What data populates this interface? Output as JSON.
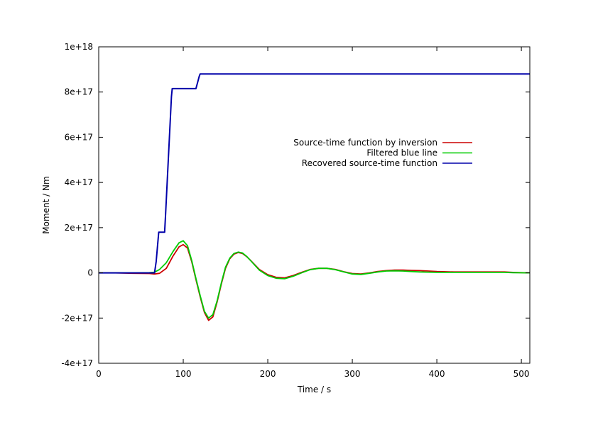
{
  "chart_data": {
    "type": "line",
    "title": "",
    "xlabel": "Time / s",
    "ylabel": "Moment / Nm",
    "xlim": [
      0,
      510
    ],
    "ylim": [
      -4e+17,
      1e+18
    ],
    "x_ticks": [
      0,
      100,
      200,
      300,
      400,
      500
    ],
    "x_tick_labels": [
      "0",
      "100",
      "200",
      "300",
      "400",
      "500"
    ],
    "y_ticks": [
      -4e+17,
      -2e+17,
      0,
      2e+17,
      4e+17,
      6e+17,
      8e+17,
      1e+18
    ],
    "y_tick_labels": [
      "-4e+17",
      "-2e+17",
      "0",
      "2e+17",
      "4e+17",
      "6e+17",
      "8e+17",
      "1e+18"
    ],
    "grid": false,
    "legend_position": "right",
    "series": [
      {
        "name": "Source-time function by inversion",
        "color": "#cc0000",
        "x": [
          0,
          20,
          40,
          60,
          66,
          72,
          80,
          88,
          95,
          100,
          105,
          110,
          115,
          120,
          125,
          130,
          135,
          140,
          145,
          150,
          155,
          160,
          165,
          170,
          175,
          180,
          190,
          200,
          210,
          220,
          230,
          240,
          250,
          260,
          270,
          280,
          290,
          300,
          310,
          320,
          330,
          340,
          350,
          360,
          370,
          380,
          390,
          400,
          420,
          440,
          460,
          480,
          490,
          510
        ],
        "y": [
          0,
          0,
          -2000000000000000.0,
          -3000000000000000.0,
          -5000000000000000.0,
          -2000000000000000.0,
          2e+16,
          7.5e+16,
          1.15e+17,
          1.25e+17,
          1.1e+17,
          5e+16,
          -3e+16,
          -1.05e+17,
          -1.75e+17,
          -2.1e+17,
          -1.95e+17,
          -1.3e+17,
          -5e+16,
          2e+16,
          6.2e+16,
          8.3e+16,
          9e+16,
          8.6e+16,
          7.2e+16,
          5.4e+16,
          1.5e+16,
          -8000000000000000.0,
          -2e+16,
          -2.2e+16,
          -1.2e+16,
          2000000000000000.0,
          1.5e+16,
          2e+16,
          2e+16,
          1.5e+16,
          5000000000000000.0,
          -3000000000000000.0,
          -5000000000000000.0,
          0,
          6000000000000000.0,
          1e+16,
          1.2e+16,
          1.2e+16,
          1.1e+16,
          1e+16,
          8000000000000000.0,
          6000000000000000.0,
          4000000000000000.0,
          4000000000000000.0,
          4000000000000000.0,
          4000000000000000.0,
          2000000000000000.0,
          0
        ]
      },
      {
        "name": "Filtered blue line",
        "color": "#00cc00",
        "x": [
          0,
          20,
          40,
          60,
          66,
          72,
          80,
          88,
          95,
          100,
          105,
          110,
          115,
          120,
          125,
          130,
          135,
          140,
          145,
          150,
          155,
          160,
          165,
          170,
          175,
          180,
          190,
          200,
          210,
          220,
          230,
          240,
          250,
          260,
          270,
          280,
          290,
          300,
          310,
          320,
          330,
          340,
          350,
          360,
          370,
          380,
          390,
          400,
          420,
          440,
          460,
          480,
          490,
          510
        ],
        "y": [
          0,
          0,
          0,
          1000000000000000.0,
          3000000000000000.0,
          1.5e+16,
          4.5e+16,
          9.5e+16,
          1.33e+17,
          1.42e+17,
          1.2e+17,
          5.5e+16,
          -2.5e+16,
          -1e+17,
          -1.7e+17,
          -2e+17,
          -1.85e+17,
          -1.25e+17,
          -4.5e+16,
          2.5e+16,
          6.5e+16,
          8.6e+16,
          9.2e+16,
          8.8e+16,
          7.3e+16,
          5.3e+16,
          1.2e+16,
          -1.2e+16,
          -2.4e+16,
          -2.6e+16,
          -1.5e+16,
          0,
          1.4e+16,
          2e+16,
          2e+16,
          1.4e+16,
          4000000000000000.0,
          -5000000000000000.0,
          -7000000000000000.0,
          -2000000000000000.0,
          4000000000000000.0,
          8000000000000000.0,
          9000000000000000.0,
          8000000000000000.0,
          6000000000000000.0,
          4000000000000000.0,
          3000000000000000.0,
          2000000000000000.0,
          2000000000000000.0,
          2000000000000000.0,
          2000000000000000.0,
          2000000000000000.0,
          1000000000000000.0,
          0
        ]
      },
      {
        "name": "Recovered source-time function",
        "color": "#0000aa",
        "x": [
          0,
          66,
          68,
          71,
          72,
          78,
          79,
          86,
          87,
          115,
          119,
          120,
          510
        ],
        "y": [
          0,
          0,
          5e+16,
          1.8e+17,
          1.8e+17,
          1.8e+17,
          2.5e+17,
          7.8e+17,
          8.15e+17,
          8.15e+17,
          8.7e+17,
          8.8e+17,
          8.8e+17
        ]
      }
    ]
  }
}
